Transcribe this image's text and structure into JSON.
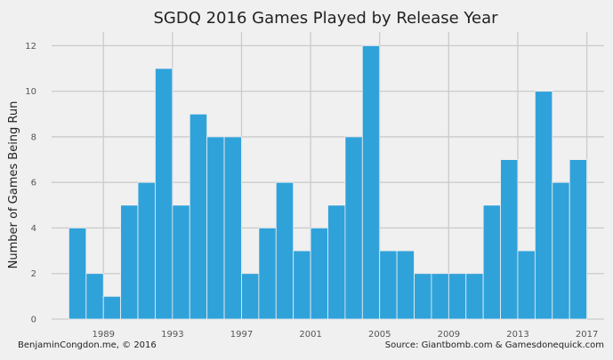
{
  "chart_data": {
    "type": "bar",
    "title": "SGDQ 2016 Games Played by Release Year",
    "xlabel": "",
    "ylabel": "Number of Games Being Run",
    "x": [
      1987,
      1988,
      1989,
      1990,
      1991,
      1992,
      1993,
      1994,
      1995,
      1996,
      1997,
      1998,
      1999,
      2000,
      2001,
      2002,
      2003,
      2004,
      2005,
      2006,
      2007,
      2008,
      2009,
      2010,
      2011,
      2012,
      2013,
      2014,
      2015,
      2016
    ],
    "values": [
      4,
      2,
      1,
      5,
      6,
      11,
      5,
      9,
      8,
      8,
      2,
      4,
      6,
      3,
      4,
      5,
      8,
      12,
      3,
      3,
      2,
      2,
      2,
      2,
      5,
      7,
      3,
      10,
      6,
      7
    ],
    "xticks": [
      "1989",
      "1993",
      "1997",
      "2001",
      "2005",
      "2009",
      "2013",
      "2017"
    ],
    "yticks": [
      "0",
      "2",
      "4",
      "6",
      "8",
      "10",
      "12"
    ],
    "xlim": [
      1986,
      2018
    ],
    "ylim": [
      0,
      12.6
    ],
    "grid": true,
    "bar_color": "#30a2da",
    "background": "#f0f0f0"
  },
  "footer": {
    "left": "BenjaminCongdon.me, © 2016",
    "right": "Source: Giantbomb.com & Gamesdonequick.com"
  }
}
